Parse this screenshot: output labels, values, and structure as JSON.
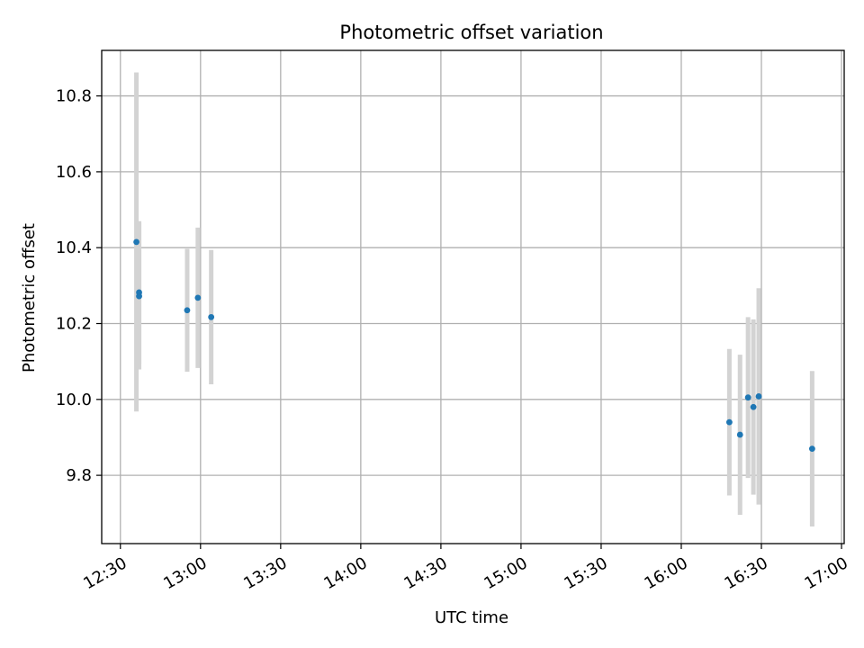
{
  "chart_data": {
    "type": "scatter",
    "title": "Photometric offset variation",
    "xlabel": "UTC time",
    "ylabel": "Photometric offset",
    "x_ticks": [
      "12:30",
      "13:00",
      "13:30",
      "14:00",
      "14:30",
      "15:00",
      "15:30",
      "16:00",
      "16:30",
      "17:00"
    ],
    "y_ticks": [
      "9.8",
      "10.0",
      "10.2",
      "10.4",
      "10.6",
      "10.8"
    ],
    "xlim": [
      "12:23",
      "17:01"
    ],
    "ylim": [
      9.62,
      10.92
    ],
    "grid": true,
    "colors": {
      "points": "#1f77b4",
      "errorbars": "#d3d3d3",
      "grid": "#b0b0b0"
    },
    "series": [
      {
        "x": [
          "12:36",
          "12:37",
          "12:37",
          "12:55",
          "12:59",
          "13:04",
          "16:18",
          "16:22",
          "16:25",
          "16:27",
          "16:29",
          "16:49"
        ],
        "y": [
          10.415,
          10.272,
          10.282,
          10.235,
          10.268,
          10.217,
          9.94,
          9.907,
          10.005,
          9.98,
          10.008,
          9.87
        ],
        "yerr": [
          0.447,
          0.193,
          0.188,
          0.162,
          0.185,
          0.177,
          0.193,
          0.211,
          0.212,
          0.231,
          0.285,
          0.205
        ]
      }
    ]
  }
}
